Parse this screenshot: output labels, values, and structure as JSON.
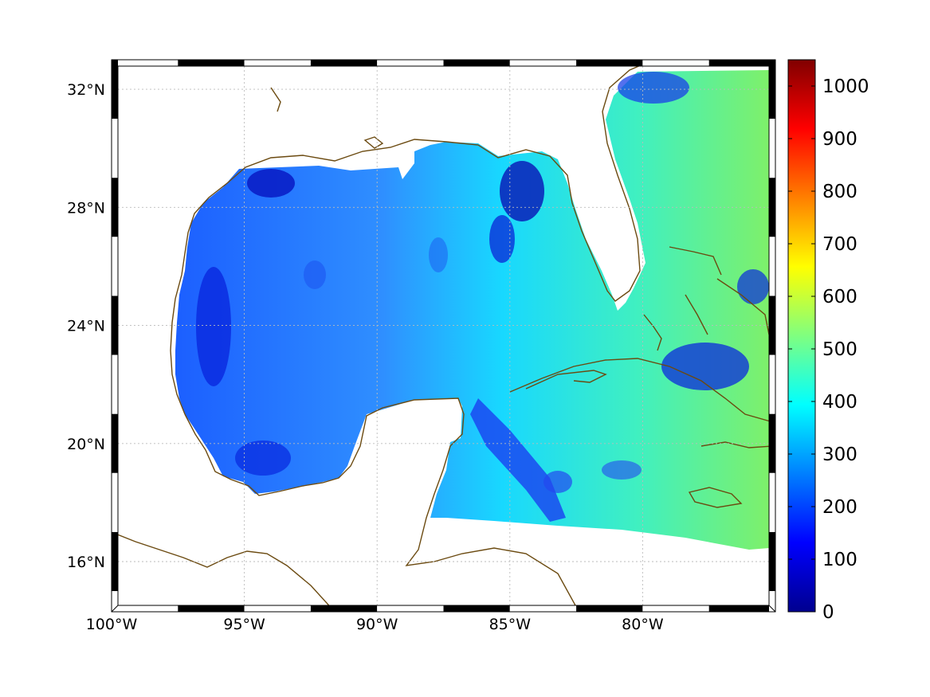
{
  "map": {
    "lon_range": [
      -100,
      -75
    ],
    "lat_range": [
      14.3,
      33
    ],
    "lon_ticks": [
      {
        "value": -100,
        "label": "100°W"
      },
      {
        "value": -95,
        "label": "95°W"
      },
      {
        "value": -90,
        "label": "90°W"
      },
      {
        "value": -85,
        "label": "85°W"
      },
      {
        "value": -80,
        "label": "80°W"
      }
    ],
    "lat_ticks": [
      {
        "value": 16,
        "label": "16°N"
      },
      {
        "value": 20,
        "label": "20°N"
      },
      {
        "value": 24,
        "label": "24°N"
      },
      {
        "value": 28,
        "label": "28°N"
      },
      {
        "value": 32,
        "label": "32°N"
      }
    ],
    "grid": true,
    "coastline_color": "#6b4a10",
    "colormap": "jet"
  },
  "colorbar": {
    "range": [
      0,
      1050
    ],
    "ticks": [
      "0",
      "100",
      "200",
      "300",
      "400",
      "500",
      "600",
      "700",
      "800",
      "900",
      "1000"
    ]
  }
}
